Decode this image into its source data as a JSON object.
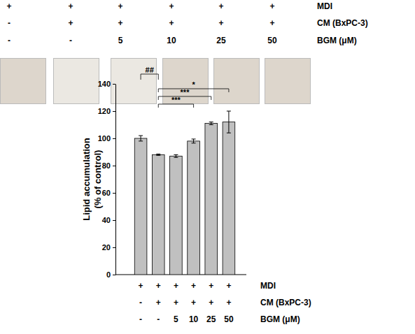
{
  "chart_data": {
    "type": "bar",
    "categories": [
      null,
      null,
      null,
      null,
      null,
      null
    ],
    "values": [
      100,
      88,
      87,
      98,
      111,
      112
    ],
    "errors": [
      2,
      0.5,
      1,
      1.5,
      1,
      8
    ],
    "color": "#c0c0c0",
    "y_label": [
      "Lipid accumulation",
      "(% of control)"
    ],
    "ylim": [
      0,
      140
    ],
    "yticks": [
      0,
      20,
      40,
      60,
      80,
      100,
      120,
      140
    ],
    "grid": false,
    "annotations": [
      {
        "text": "##",
        "from": 0,
        "to": 1
      },
      {
        "text": "***",
        "from": 1,
        "to": 3
      },
      {
        "text": "***",
        "from": 1,
        "to": 4
      },
      {
        "text": "*",
        "from": 1,
        "to": 5
      }
    ],
    "treatments": [
      {
        "label": "MDI",
        "values": [
          "+",
          "+",
          "+",
          "+",
          "+",
          "+"
        ]
      },
      {
        "label": "CM (BxPC-3)",
        "values": [
          "-",
          "+",
          "+",
          "+",
          "+",
          "+"
        ]
      },
      {
        "label": "BGM (μM)",
        "values": [
          "-",
          "-",
          "5",
          "10",
          "25",
          "50"
        ]
      }
    ]
  }
}
